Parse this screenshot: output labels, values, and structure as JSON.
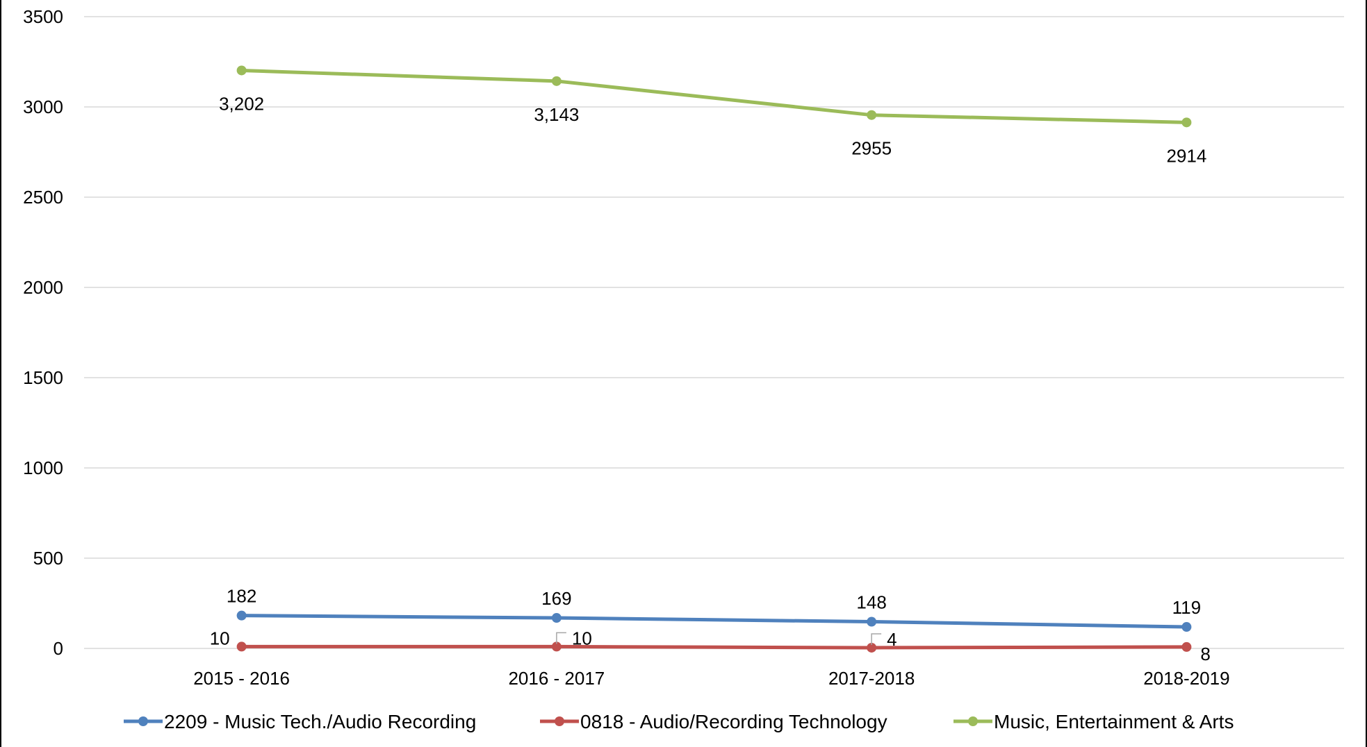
{
  "chart_data": {
    "type": "line",
    "title": "",
    "xlabel": "",
    "ylabel": "",
    "categories": [
      "2015 - 2016",
      "2016 - 2017",
      "2017-2018",
      "2018-2019"
    ],
    "ylim": [
      0,
      3500
    ],
    "yticks": [
      0,
      500,
      1000,
      1500,
      2000,
      2500,
      3000,
      3500
    ],
    "grid": true,
    "legend_position": "bottom",
    "series": [
      {
        "name": "2209 - Music Tech./Audio Recording",
        "color": "#4f81bd",
        "values": [
          182,
          169,
          148,
          119
        ],
        "labels": [
          "182",
          "169",
          "148",
          "119"
        ]
      },
      {
        "name": "0818 - Audio/Recording Technology",
        "color": "#c0504d",
        "values": [
          10,
          10,
          4,
          8
        ],
        "labels": [
          "10",
          "10",
          "4",
          "8"
        ]
      },
      {
        "name": "Music, Entertainment & Arts",
        "color": "#9bbb59",
        "values": [
          3202,
          3143,
          2955,
          2914
        ],
        "labels": [
          "3,202",
          "3,143",
          "2955",
          "2914"
        ]
      }
    ]
  }
}
